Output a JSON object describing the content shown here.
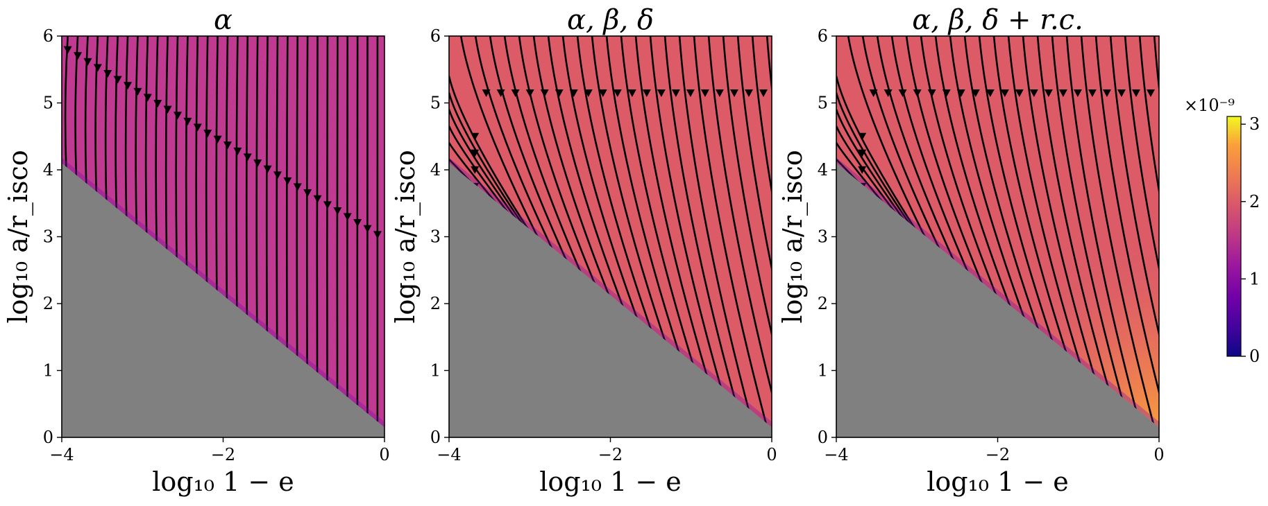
{
  "chart_data": [
    {
      "type": "heatmap",
      "panel": "alpha",
      "title": "α",
      "xlabel": "log₁₀ 1 − e",
      "ylabel": "log₁₀ a/r_isco",
      "xlim": [
        -4,
        0
      ],
      "ylim": [
        0,
        6
      ],
      "xticks": [
        -4,
        -2,
        0
      ],
      "yticks": [
        0,
        1,
        2,
        3,
        4,
        5,
        6
      ],
      "excluded_region": "below line from (-4, 4.1) to (0, 0.15)",
      "streamlines": "vertical, flowing downward",
      "background_value_1e9": 1.55
    },
    {
      "type": "heatmap",
      "panel": "alpha-beta-delta",
      "title": "α, β, δ",
      "xlabel": "log₁₀ 1 − e",
      "ylabel": "log₁₀ a/r_isco",
      "xlim": [
        -4,
        0
      ],
      "ylim": [
        0,
        6
      ],
      "xticks": [
        -4,
        -2,
        0
      ],
      "yticks": [
        0,
        1,
        2,
        3,
        4,
        5,
        6
      ],
      "excluded_region": "below line from (-4, 4.1) to (0, 0.15)",
      "streamlines": "curving down-left to down-right",
      "background_value_1e9": 2.05
    },
    {
      "type": "heatmap",
      "panel": "alpha-beta-delta-rc",
      "title": "α, β, δ + r.c.",
      "xlabel": "log₁₀ 1 − e",
      "ylabel": "log₁₀ a/r_isco",
      "xlim": [
        -4,
        0
      ],
      "ylim": [
        0,
        6
      ],
      "xticks": [
        -4,
        -2,
        0
      ],
      "yticks": [
        0,
        1,
        2,
        3,
        4,
        5,
        6
      ],
      "excluded_region": "below line from (-4, 4.1) to (0, 0.15)",
      "streamlines": "curving down-left to down-right",
      "background_value_1e9": 2.05
    }
  ],
  "colorbar": {
    "colormap": "plasma",
    "multiplier": "×10⁻⁹",
    "ticks": [
      0,
      1,
      2,
      3
    ],
    "range": [
      0,
      3.1
    ]
  },
  "colors": {
    "excluded": "#808080",
    "panel_alpha": "#c13a91",
    "panel_other": "#dc5b67",
    "streamline": "#000000"
  }
}
